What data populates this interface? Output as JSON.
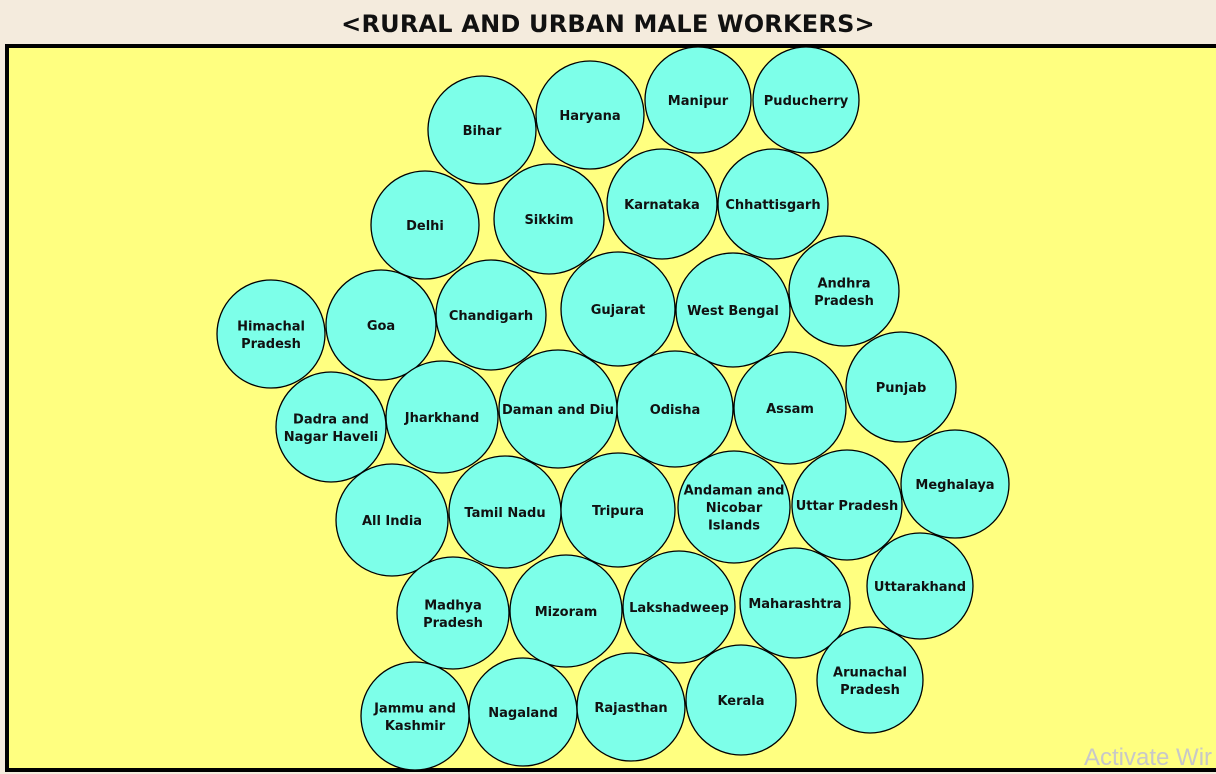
{
  "window": {
    "title": "<RURAL AND URBAN MALE WORKERS>",
    "watermark": "Activate Wir"
  },
  "colors": {
    "background": "#ffff80",
    "bubble_fill": "#7dffe9",
    "bubble_stroke": "#000000",
    "title_bar": "#f4ebdd"
  },
  "chart_data": {
    "type": "bubble-pack",
    "title": "<RURAL AND URBAN MALE WORKERS>",
    "items": [
      {
        "name": "Bihar"
      },
      {
        "name": "Haryana"
      },
      {
        "name": "Manipur"
      },
      {
        "name": "Puducherry"
      },
      {
        "name": "Delhi"
      },
      {
        "name": "Sikkim"
      },
      {
        "name": "Karnataka"
      },
      {
        "name": "Chhattisgarh"
      },
      {
        "name": "Himachal Pradesh"
      },
      {
        "name": "Goa"
      },
      {
        "name": "Chandigarh"
      },
      {
        "name": "Gujarat"
      },
      {
        "name": "West Bengal"
      },
      {
        "name": "Andhra Pradesh"
      },
      {
        "name": "Dadra and Nagar Haveli"
      },
      {
        "name": "Jharkhand"
      },
      {
        "name": "Daman and Diu"
      },
      {
        "name": "Odisha"
      },
      {
        "name": "Assam"
      },
      {
        "name": "Punjab"
      },
      {
        "name": "All India"
      },
      {
        "name": "Tamil Nadu"
      },
      {
        "name": "Tripura"
      },
      {
        "name": "Andaman and Nicobar Islands"
      },
      {
        "name": "Uttar Pradesh"
      },
      {
        "name": "Meghalaya"
      },
      {
        "name": "Madhya Pradesh"
      },
      {
        "name": "Mizoram"
      },
      {
        "name": "Lakshadweep"
      },
      {
        "name": "Maharashtra"
      },
      {
        "name": "Uttarakhand"
      },
      {
        "name": "Jammu and Kashmir"
      },
      {
        "name": "Nagaland"
      },
      {
        "name": "Rajasthan"
      },
      {
        "name": "Kerala"
      },
      {
        "name": "Arunachal Pradesh"
      }
    ]
  }
}
